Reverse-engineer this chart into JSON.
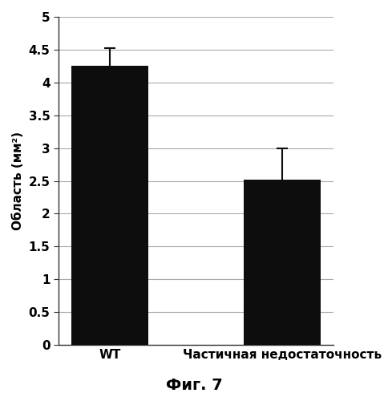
{
  "categories": [
    "WT",
    "Частичная недостаточность"
  ],
  "values": [
    4.25,
    2.52
  ],
  "errors": [
    0.27,
    0.47
  ],
  "bar_color": "#0d0d0d",
  "bar_width": 0.45,
  "ylabel": "Область (мм²)",
  "ylim": [
    0,
    5
  ],
  "yticks": [
    0,
    0.5,
    1.0,
    1.5,
    2.0,
    2.5,
    3.0,
    3.5,
    4.0,
    4.5,
    5.0
  ],
  "ytick_labels": [
    "0",
    "0.5",
    "1",
    "1.5",
    "2",
    "2.5",
    "3",
    "3.5",
    "4",
    "4.5",
    "5"
  ],
  "figure_caption": "Фиг. 7",
  "background_color": "#ffffff",
  "capsize": 5,
  "error_linewidth": 1.5,
  "grid_color": "#aaaaaa",
  "grid_linewidth": 0.8
}
